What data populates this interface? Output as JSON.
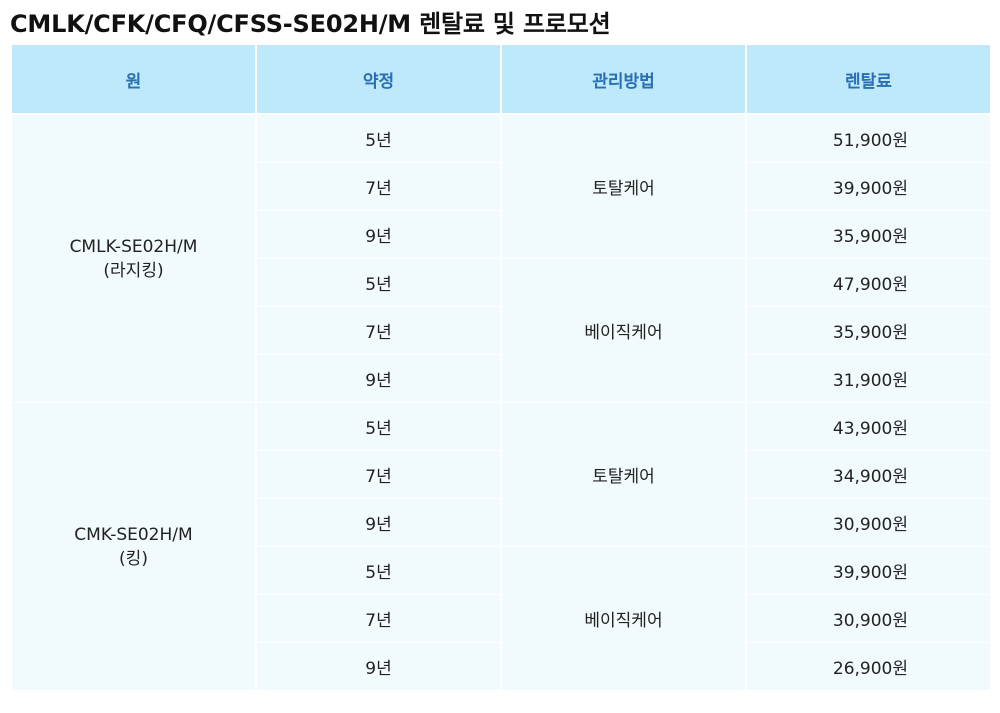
{
  "title": "CMLK/CFK/CFQ/CFSS-SE02H/M 렌탈료 및 프로모션",
  "headers": [
    "원",
    "약정",
    "관리방법",
    "렌탈료"
  ],
  "groups": [
    {
      "model_name": "CMLK-SE02H/M",
      "model_sub": "(라지킹)",
      "plans": [
        {
          "method": "토탈케어",
          "rows": [
            {
              "term": "5년",
              "price": "51,900원"
            },
            {
              "term": "7년",
              "price": "39,900원"
            },
            {
              "term": "9년",
              "price": "35,900원"
            }
          ]
        },
        {
          "method": "베이직케어",
          "rows": [
            {
              "term": "5년",
              "price": "47,900원"
            },
            {
              "term": "7년",
              "price": "35,900원"
            },
            {
              "term": "9년",
              "price": "31,900원"
            }
          ]
        }
      ]
    },
    {
      "model_name": "CMK-SE02H/M",
      "model_sub": "(킹)",
      "plans": [
        {
          "method": "토탈케어",
          "rows": [
            {
              "term": "5년",
              "price": "43,900원"
            },
            {
              "term": "7년",
              "price": "34,900원"
            },
            {
              "term": "9년",
              "price": "30,900원"
            }
          ]
        },
        {
          "method": "베이직케어",
          "rows": [
            {
              "term": "5년",
              "price": "39,900원"
            },
            {
              "term": "7년",
              "price": "30,900원"
            },
            {
              "term": "9년",
              "price": "26,900원"
            }
          ]
        }
      ]
    }
  ]
}
